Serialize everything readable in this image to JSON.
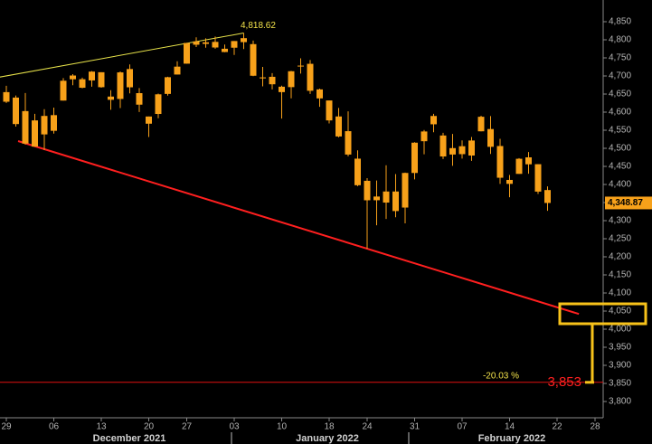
{
  "chart_data": {
    "type": "candlestick",
    "categories": [
      "29",
      null,
      null,
      null,
      null,
      "06",
      null,
      null,
      null,
      null,
      "13",
      null,
      null,
      null,
      null,
      "20",
      null,
      null,
      null,
      "27",
      null,
      null,
      null,
      null,
      "03",
      null,
      null,
      null,
      null,
      "10",
      null,
      null,
      null,
      null,
      "18",
      null,
      null,
      null,
      "24",
      null,
      null,
      null,
      null,
      "31",
      null,
      null,
      null,
      null,
      "07",
      null,
      null,
      null,
      null,
      "14",
      null,
      null,
      null,
      null,
      "22",
      null,
      null,
      null,
      "28"
    ],
    "month_labels": [
      "December 2021",
      "January 2022",
      "February 2022"
    ],
    "open": [
      4628.75,
      4640.25,
      4602.82,
      4504.73,
      4589.49,
      4548.37,
      4631.97,
      4690.86,
      4691.0,
      4687.64,
      4710.3,
      4642.99,
      4636.46,
      4719.13,
      4652.5,
      4587.9,
      4594.96,
      4650.36,
      4703.96,
      4733.99,
      4795.49,
      4788.64,
      4794.23,
      4775.21,
      4778.14,
      4804.51,
      4787.99,
      4693.39,
      4697.66,
      4655.34,
      4669.14,
      4728.59,
      4733.56,
      4637.99,
      4632.24,
      4588.03,
      4547.35,
      4471.38,
      4356.32,
      4366.64,
      4380.58,
      4380.58,
      4336.19,
      4431.79,
      4519.57,
      4566.39,
      4535.41,
      4482.79,
      4505.75,
      4480.02,
      4547.0,
      4553.24,
      4506.27,
      4412.61,
      4429.28,
      4455.75,
      4456.06,
      4384.57,
      null,
      null,
      null,
      null,
      null
    ],
    "high": [
      4672.95,
      4646.02,
      4652.94,
      4595.46,
      4608.03,
      4612.6,
      4694.04,
      4705.06,
      4695.26,
      4713.57,
      4710.3,
      4660.47,
      4712.6,
      4731.99,
      4666.7,
      4587.9,
      4651.14,
      4697.67,
      4740.74,
      4791.49,
      4807.02,
      4804.06,
      4808.93,
      4786.83,
      4796.64,
      4818.62,
      4797.7,
      4725.01,
      4707.95,
      4673.02,
      4714.13,
      4748.83,
      4744.13,
      4665.13,
      4632.24,
      4611.55,
      4602.11,
      4494.52,
      4417.35,
      4411.01,
      4453.23,
      4428.74,
      4432.72,
      4516.89,
      4550.49,
      4595.31,
      4542.88,
      4539.66,
      4521.86,
      4531.32,
      4590.03,
      4588.92,
      4526.33,
      4426.22,
      4472.77,
      4489.55,
      4456.06,
      4394.6,
      null,
      null,
      null,
      null,
      null
    ],
    "low": [
      4625.26,
      4560.0,
      4510.27,
      4504.73,
      4495.12,
      4540.51,
      4631.97,
      4674.52,
      4665.98,
      4670.24,
      4667.6,
      4606.52,
      4611.22,
      4651.89,
      4600.22,
      4531.1,
      4583.16,
      4645.53,
      4703.96,
      4733.99,
      4780.04,
      4778.08,
      4775.33,
      4765.75,
      4758.17,
      4774.27,
      4699.44,
      4671.26,
      4662.74,
      4582.24,
      4638.27,
      4706.71,
      4650.29,
      4614.75,
      4568.7,
      4530.2,
      4477.95,
      4395.34,
      4222.62,
      4287.11,
      4304.8,
      4309.5,
      4292.46,
      4414.02,
      4483.53,
      4544.32,
      4470.39,
      4451.5,
      4471.47,
      4465.4,
      4547.0,
      4484.31,
      4401.41,
      4364.84,
      4429.28,
      4429.68,
      4373.81,
      4327.22,
      null,
      null,
      null,
      null,
      null
    ],
    "close": [
      4655.27,
      4567.0,
      4513.04,
      4577.1,
      4538.43,
      4591.67,
      4686.75,
      4701.21,
      4667.45,
      4712.02,
      4668.97,
      4634.09,
      4709.85,
      4668.67,
      4620.64,
      4568.02,
      4649.23,
      4696.56,
      4725.79,
      4791.19,
      4786.35,
      4793.06,
      4778.73,
      4766.18,
      4796.56,
      4793.54,
      4700.58,
      4696.05,
      4677.03,
      4670.29,
      4713.07,
      4726.35,
      4659.03,
      4662.85,
      4577.11,
      4532.76,
      4482.73,
      4397.94,
      4410.13,
      4356.45,
      4349.93,
      4326.51,
      4431.85,
      4515.55,
      4546.54,
      4589.38,
      4477.44,
      4500.53,
      4483.87,
      4521.54,
      4587.18,
      4504.08,
      4418.64,
      4401.67,
      4471.07,
      4475.01,
      4380.26,
      4348.87,
      null,
      null,
      null,
      null,
      null
    ],
    "color": "#f7a11a",
    "ylim": [
      3755,
      4910
    ],
    "yticks": [
      {
        "value": 3800,
        "label": "3,800"
      },
      {
        "value": 3850,
        "label": "3,850"
      },
      {
        "value": 3900,
        "label": "3,900"
      },
      {
        "value": 3950,
        "label": "3,950"
      },
      {
        "value": 4000,
        "label": "4,000"
      },
      {
        "value": 4050,
        "label": "4,050"
      },
      {
        "value": 4100,
        "label": "4,100"
      },
      {
        "value": 4150,
        "label": "4,150"
      },
      {
        "value": 4200,
        "label": "4,200"
      },
      {
        "value": 4250,
        "label": "4,250"
      },
      {
        "value": 4300,
        "label": "4,300"
      },
      {
        "value": 4350,
        "label": "4,350"
      },
      {
        "value": 4400,
        "label": "4,400"
      },
      {
        "value": 4450,
        "label": "4,450"
      },
      {
        "value": 4500,
        "label": "4,500"
      },
      {
        "value": 4550,
        "label": "4,550"
      },
      {
        "value": 4600,
        "label": "4,600"
      },
      {
        "value": 4650,
        "label": "4,650"
      },
      {
        "value": 4700,
        "label": "4,700"
      },
      {
        "value": 4750,
        "label": "4,750"
      },
      {
        "value": 4800,
        "label": "4,800"
      },
      {
        "value": 4850,
        "label": "4,850"
      }
    ],
    "high_label": {
      "value": 4818.62,
      "label": "4,818.62"
    },
    "last_price": {
      "value": 4348.87,
      "label": "4,348.87"
    },
    "target": {
      "value": 3853,
      "label": "3,853"
    },
    "decline_label": "-20.03 %",
    "trendlines": [
      {
        "color": "#e8e34a",
        "x": [
          -0.67,
          25
        ],
        "y": [
          4697,
          4818.62
        ]
      },
      {
        "color": "#ff1f1f",
        "x": [
          1.24,
          60.3
        ],
        "y": [
          4520,
          4042
        ]
      }
    ]
  }
}
